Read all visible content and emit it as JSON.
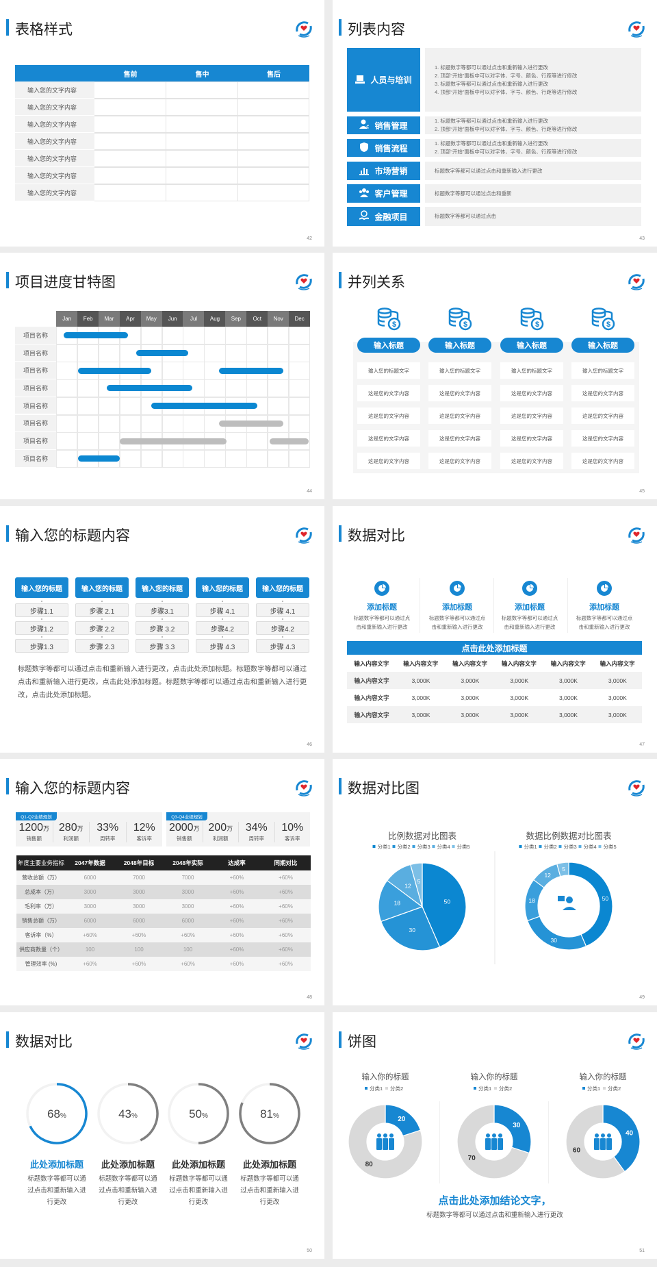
{
  "colors": {
    "accent": "#1787d2",
    "gray_bar": "#bdbdbd",
    "dark_header": "#222222",
    "panel": "#f2f2f2"
  },
  "slides": {
    "s42": {
      "title": "表格样式",
      "page": "42",
      "table": {
        "headers": [
          "",
          "售前",
          "售中",
          "售后"
        ],
        "rows": [
          "输入您的文字内容",
          "输入您的文字内容",
          "输入您的文字内容",
          "输入您的文字内容",
          "输入您的文字内容",
          "输入您的文字内容",
          "输入您的文字内容"
        ]
      }
    },
    "s43": {
      "title": "列表内容",
      "page": "43",
      "items": [
        {
          "label": "人员与培训",
          "icon": "training-icon",
          "lines": [
            "1.  标题数字等都可以通过点击和重新输入进行更改",
            "2.  顶部“开始”面板中可以对字体、字号、颜色、行距等进行修改",
            "3.  标题数字等都可以通过点击和重新输入进行更改",
            "4.  顶部“开始”面板中可以对字体、字号、颜色、行距等进行修改"
          ]
        },
        {
          "label": "销售管理",
          "icon": "user-gear-icon",
          "lines": [
            "1.  标题数字等都可以通过点击和重新输入进行更改",
            "2.  顶部“开始”面板中可以对字体、字号、颜色、行距等进行修改"
          ]
        },
        {
          "label": "销售流程",
          "icon": "shield-icon",
          "lines": [
            "1.  标题数字等都可以通过点击和重新输入进行更改",
            "2.  顶部“开始”面板中可以对字体、字号、颜色、行距等进行修改"
          ]
        },
        {
          "label": "市场营销",
          "icon": "bar-chart-icon",
          "lines": [
            "标题数字等都可以通过点击和重新输入进行更改"
          ]
        },
        {
          "label": "客户管理",
          "icon": "users-icon",
          "lines": [
            "标题数字等都可以通过点击和重新"
          ]
        },
        {
          "label": "金融项目",
          "icon": "money-hand-icon",
          "lines": [
            "标题数字等都可以通过点击"
          ]
        }
      ]
    },
    "s44": {
      "title": "项目进度甘特图",
      "page": "44"
    },
    "s45": {
      "title": "并列关系",
      "page": "45",
      "columns": [
        {
          "icon": "coins-dollar-icon",
          "heading": "输入标题",
          "cells": [
            "输入您的标题文字",
            "这是您的文字内容",
            "这是您的文字内容",
            "这是您的文字内容",
            "这是您的文字内容"
          ]
        },
        {
          "icon": "coins-dollar-icon",
          "heading": "输入标题",
          "cells": [
            "输入您的标题文字",
            "这是您的文字内容",
            "这是您的文字内容",
            "这是您的文字内容",
            "这是您的文字内容"
          ]
        },
        {
          "icon": "coins-dollar-icon",
          "heading": "输入标题",
          "cells": [
            "输入您的标题文字",
            "这是您的文字内容",
            "这是您的文字内容",
            "这是您的文字内容",
            "这是您的文字内容"
          ]
        },
        {
          "icon": "coins-dollar-icon",
          "heading": "输入标题",
          "cells": [
            "输入您的标题文字",
            "这是您的文字内容",
            "这是您的文字内容",
            "这是您的文字内容",
            "这是您的文字内容"
          ]
        }
      ]
    },
    "s46": {
      "title": "输入您的标题内容",
      "page": "46",
      "columns": [
        {
          "heading": "输入您的标题",
          "steps": [
            "步骤1.1",
            "步骤1.2",
            "步骤1.3"
          ]
        },
        {
          "heading": "输入您的标题",
          "steps": [
            "步骤 2.1",
            "步骤 2.2",
            "步骤 2.3"
          ]
        },
        {
          "heading": "输入您的标题",
          "steps": [
            "步骤3.1",
            "步骤 3.2",
            "步骤 3.3"
          ]
        },
        {
          "heading": "输入您的标题",
          "steps": [
            "步骤 4.1",
            "步骤4.2",
            "步骤 4.3"
          ]
        },
        {
          "heading": "输入您的标题",
          "steps": [
            "步骤 4.1",
            "步骤4.2",
            "步骤 4.3"
          ]
        }
      ],
      "paragraph": "标题数字等都可以通过点击和重新输入进行更改，点击此处添加标题。标题数字等都可以通过点击和重新输入进行更改，点击此处添加标题。标题数字等都可以通过点击和重新输入进行更改，点击此处添加标题。"
    },
    "s47": {
      "title": "数据对比",
      "page": "47",
      "features": [
        {
          "icon": "pie-chart-icon",
          "heading": "添加标题",
          "lines": [
            "标题数字等都可以通过点",
            "击和重新输入进行更改"
          ]
        },
        {
          "icon": "pie-chart-icon",
          "heading": "添加标题",
          "lines": [
            "标题数字等都可以通过点",
            "击和重新输入进行更改"
          ]
        },
        {
          "icon": "pie-chart-icon",
          "heading": "添加标题",
          "lines": [
            "标题数字等都可以通过点",
            "击和重新输入进行更改"
          ]
        },
        {
          "icon": "pie-chart-icon",
          "heading": "添加标题",
          "lines": [
            "标题数字等都可以通过点",
            "击和重新输入进行更改"
          ]
        }
      ],
      "table": {
        "title": "点击此处添加标题",
        "headers": [
          "输入内容文字",
          "输入内容文字",
          "输入内容文字",
          "输入内容文字",
          "输入内容文字",
          "输入内容文字"
        ],
        "rows": [
          [
            "输入内容文字",
            "3,000K",
            "3,000K",
            "3,000K",
            "3,000K",
            "3,000K"
          ],
          [
            "输入内容文字",
            "3,000K",
            "3,000K",
            "3,000K",
            "3,000K",
            "3,000K"
          ],
          [
            "输入内容文字",
            "3,000K",
            "3,000K",
            "3,000K",
            "3,000K",
            "3,000K"
          ]
        ]
      }
    },
    "s48": {
      "title": "输入您的标题内容",
      "page": "48",
      "panels": [
        {
          "tag": "Q1-Q2业绩规划",
          "kpis": [
            {
              "value": "1200",
              "unit": "万",
              "label": "销售额"
            },
            {
              "value": "280",
              "unit": "万",
              "label": "利润额"
            },
            {
              "value": "33%",
              "unit": "",
              "label": "周转率"
            },
            {
              "value": "12%",
              "unit": "",
              "label": "客诉率"
            }
          ]
        },
        {
          "tag": "Q3-Q4业绩规划",
          "kpis": [
            {
              "value": "2000",
              "unit": "万",
              "label": "销售额"
            },
            {
              "value": "200",
              "unit": "万",
              "label": "利润额"
            },
            {
              "value": "34%",
              "unit": "",
              "label": "周转率"
            },
            {
              "value": "10%",
              "unit": "",
              "label": "客诉率"
            }
          ]
        }
      ],
      "table": {
        "headers": [
          "年度主要业务指标",
          "2047年数据",
          "2048年目标",
          "2048年实际",
          "达成率",
          "同期对比"
        ],
        "rows": [
          [
            "营收总额（万）",
            "6000",
            "7000",
            "7000",
            "+60%",
            "+60%"
          ],
          [
            "总成本（万）",
            "3000",
            "3000",
            "3000",
            "+60%",
            "+60%"
          ],
          [
            "毛利率（万）",
            "3000",
            "3000",
            "3000",
            "+60%",
            "+60%"
          ],
          [
            "销售总额（万）",
            "6000",
            "6000",
            "6000",
            "+60%",
            "+60%"
          ],
          [
            "客诉率（%）",
            "+60%",
            "+60%",
            "+60%",
            "+60%",
            "+60%"
          ],
          [
            "供应商数量（个）",
            "100",
            "100",
            "100",
            "+60%",
            "+60%"
          ],
          [
            "管理效率 (%)",
            "+60%",
            "+60%",
            "+60%",
            "+60%",
            "+60%"
          ]
        ]
      }
    },
    "s49": {
      "title": "数据对比图",
      "page": "49",
      "center_icon": "customer-service-icon"
    },
    "s50": {
      "title": "数据对比",
      "page": "50",
      "rings": [
        {
          "value": 68,
          "unit": "%",
          "heading": "此处添加标题",
          "lines": [
            "标题数字等都可以通",
            "过点击和重新输入进",
            "行更改"
          ],
          "color": "#1787d2"
        },
        {
          "value": 43,
          "unit": "%",
          "heading": "此处添加标题",
          "lines": [
            "标题数字等都可以通",
            "过点击和重新输入进",
            "行更改"
          ],
          "color": "#7f7f7f"
        },
        {
          "value": 50,
          "unit": "%",
          "heading": "此处添加标题",
          "lines": [
            "标题数字等都可以通",
            "过点击和重新输入进",
            "行更改"
          ],
          "color": "#7f7f7f"
        },
        {
          "value": 81,
          "unit": "%",
          "heading": "此处添加标题",
          "lines": [
            "标题数字等都可以通",
            "过点击和重新输入进",
            "行更改"
          ],
          "color": "#7f7f7f"
        }
      ]
    },
    "s51": {
      "title": "饼图",
      "page": "51",
      "center_icon": "team-icon",
      "conclusion": "点击此处添加结论文字，",
      "subtitle": "标题数字等都可以通过点击和重新输入进行更改"
    }
  },
  "chart_data": [
    {
      "type": "bar",
      "orientation": "horizontal-range",
      "x_unit": "month",
      "x_ticks": [
        "Jan",
        "Feb",
        "Mar",
        "Apr",
        "May",
        "Jun",
        "Jul",
        "Aug",
        "Sep",
        "Oct",
        "Nov",
        "Dec"
      ],
      "categories": [
        "项目名称",
        "项目名称",
        "项目名称",
        "项目名称",
        "项目名称",
        "项目名称",
        "项目名称",
        "项目名称"
      ],
      "tasks": [
        {
          "row": 0,
          "start": 0.35,
          "end": 3.4,
          "color": "#0b87d1"
        },
        {
          "row": 1,
          "start": 3.8,
          "end": 6.25,
          "color": "#0b87d1"
        },
        {
          "row": 2,
          "start": 1.05,
          "end": 4.5,
          "color": "#0b87d1"
        },
        {
          "row": 2,
          "start": 7.7,
          "end": 10.75,
          "color": "#0b87d1"
        },
        {
          "row": 3,
          "start": 2.4,
          "end": 6.45,
          "color": "#0b87d1"
        },
        {
          "row": 4,
          "start": 4.5,
          "end": 9.5,
          "color": "#0b87d1"
        },
        {
          "row": 5,
          "start": 7.7,
          "end": 10.75,
          "color": "#bdbdbd"
        },
        {
          "row": 6,
          "start": 3.0,
          "end": 8.05,
          "color": "#bdbdbd"
        },
        {
          "row": 6,
          "start": 10.1,
          "end": 11.95,
          "color": "#bdbdbd"
        },
        {
          "row": 7,
          "start": 1.05,
          "end": 3.0,
          "color": "#0b87d1"
        }
      ],
      "grid": true
    },
    {
      "type": "pie",
      "title": "比例数据对比图表",
      "categories": [
        "分类1",
        "分类2",
        "分类3",
        "分类4",
        "分类5"
      ],
      "values": [
        50,
        30,
        18,
        12,
        5
      ],
      "colors": [
        "#0b87d1",
        "#2593d6",
        "#3a9fdc",
        "#5aaee0",
        "#7cbfe6"
      ],
      "legend": "top"
    },
    {
      "type": "pie",
      "donut": true,
      "title": "数据比例数据对比图表",
      "categories": [
        "分类1",
        "分类2",
        "分类3",
        "分类4",
        "分类5"
      ],
      "values": [
        50,
        30,
        18,
        12,
        5
      ],
      "colors": [
        "#0b87d1",
        "#2593d6",
        "#3a9fdc",
        "#5aaee0",
        "#7cbfe6"
      ],
      "legend": "top"
    },
    {
      "type": "pie",
      "donut": true,
      "title": "输入你的标题",
      "categories": [
        "分类1",
        "分类2"
      ],
      "values": [
        20,
        80
      ],
      "colors": [
        "#1787d2",
        "#d9d9d9"
      ],
      "legend": "top"
    },
    {
      "type": "pie",
      "donut": true,
      "title": "输入你的标题",
      "categories": [
        "分类1",
        "分类2"
      ],
      "values": [
        30,
        70
      ],
      "colors": [
        "#1787d2",
        "#d9d9d9"
      ],
      "legend": "top"
    },
    {
      "type": "pie",
      "donut": true,
      "title": "输入你的标题",
      "categories": [
        "分类1",
        "分类2"
      ],
      "values": [
        40,
        60
      ],
      "colors": [
        "#1787d2",
        "#d9d9d9"
      ],
      "legend": "top"
    }
  ]
}
